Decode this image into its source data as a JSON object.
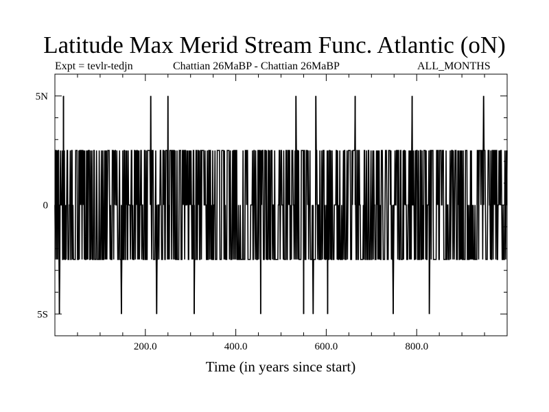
{
  "chart_data": {
    "type": "line",
    "title": "Latitude Max Merid Stream Func. Atlantic (oN)",
    "subtitle_left": "Expt = tevlr-tedjn",
    "subtitle_center": "Chattian  26MaBP - Chattian  26MaBP",
    "subtitle_right": "ALL_MONTHS",
    "xlabel": "Time (in years since start)",
    "ylabel": "",
    "xlim": [
      0,
      1000
    ],
    "ylim": [
      -6,
      6
    ],
    "x_ticks": [
      {
        "value": 200,
        "label": "200.0"
      },
      {
        "value": 400,
        "label": "400.0"
      },
      {
        "value": 600,
        "label": "600.0"
      },
      {
        "value": 800,
        "label": "800.0"
      }
    ],
    "y_ticks": [
      {
        "value": 5,
        "label": "5N"
      },
      {
        "value": 0,
        "label": "0"
      },
      {
        "value": -5,
        "label": "5S"
      }
    ],
    "grid": false,
    "series": [
      {
        "color": "#000000",
        "levels": [
          -5,
          -2.5,
          0,
          2.5,
          5
        ],
        "spikes_to_5N_x": [
          19,
          212,
          250,
          533,
          577,
          664,
          790,
          948
        ],
        "spikes_to_5S_x": [
          10,
          147,
          225,
          308,
          455,
          550,
          571,
          603,
          748,
          828
        ],
        "x_start": 0,
        "x_end": 1000,
        "sampling_interval_years": 1
      }
    ]
  }
}
